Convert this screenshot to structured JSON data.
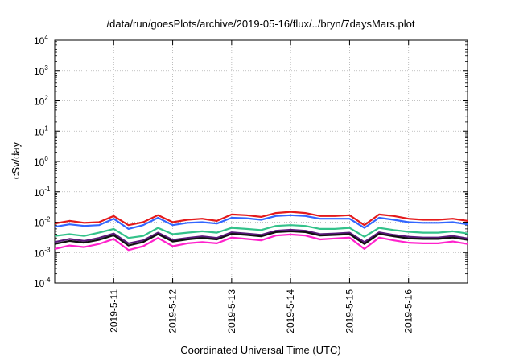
{
  "chart_data": {
    "type": "line",
    "title": "/data/run/goesPlots/archive/2019-05-16/flux/../bryn/7daysMars.plot",
    "xlabel": "Coordinated Universal Time (UTC)",
    "ylabel": "cSv/day",
    "yscale": "log",
    "ylim": [
      0.0001,
      10000
    ],
    "xlim": [
      "2019-05-10T00:00",
      "2019-05-17T00:00"
    ],
    "grid": true,
    "x_ticks": [
      "2019-5-11",
      "2019-5-12",
      "2019-5-13",
      "2019-5-14",
      "2019-5-15",
      "2019-5-16"
    ],
    "y_ticks": [
      {
        "base": "10",
        "exp": "-4"
      },
      {
        "base": "10",
        "exp": "-3"
      },
      {
        "base": "10",
        "exp": "-2"
      },
      {
        "base": "10",
        "exp": "-1"
      },
      {
        "base": "10",
        "exp": "0"
      },
      {
        "base": "10",
        "exp": "1"
      },
      {
        "base": "10",
        "exp": "2"
      },
      {
        "base": "10",
        "exp": "3"
      },
      {
        "base": "10",
        "exp": "4"
      }
    ],
    "x": [
      "2019-05-10T00:00",
      "2019-05-10T06:00",
      "2019-05-10T12:00",
      "2019-05-10T18:00",
      "2019-05-11T00:00",
      "2019-05-11T06:00",
      "2019-05-11T12:00",
      "2019-05-11T18:00",
      "2019-05-12T00:00",
      "2019-05-12T06:00",
      "2019-05-12T12:00",
      "2019-05-12T18:00",
      "2019-05-13T00:00",
      "2019-05-13T06:00",
      "2019-05-13T12:00",
      "2019-05-13T18:00",
      "2019-05-14T00:00",
      "2019-05-14T06:00",
      "2019-05-14T12:00",
      "2019-05-14T18:00",
      "2019-05-15T00:00",
      "2019-05-15T06:00",
      "2019-05-15T12:00",
      "2019-05-15T18:00",
      "2019-05-16T00:00",
      "2019-05-16T06:00",
      "2019-05-16T12:00",
      "2019-05-16T18:00",
      "2019-05-17T00:00"
    ],
    "series": [
      {
        "color": "#e41a1c",
        "values": [
          0.009,
          0.011,
          0.0095,
          0.01,
          0.016,
          0.008,
          0.01,
          0.017,
          0.01,
          0.012,
          0.013,
          0.011,
          0.018,
          0.017,
          0.015,
          0.02,
          0.022,
          0.02,
          0.016,
          0.016,
          0.017,
          0.008,
          0.018,
          0.016,
          0.013,
          0.012,
          0.012,
          0.013,
          0.011
        ]
      },
      {
        "color": "#3366ff",
        "values": [
          0.007,
          0.0085,
          0.0075,
          0.008,
          0.013,
          0.006,
          0.008,
          0.014,
          0.008,
          0.0095,
          0.01,
          0.009,
          0.014,
          0.0135,
          0.012,
          0.016,
          0.017,
          0.016,
          0.013,
          0.013,
          0.013,
          0.0065,
          0.014,
          0.012,
          0.01,
          0.0095,
          0.0095,
          0.01,
          0.0085
        ]
      },
      {
        "color": "#33c28a",
        "values": [
          0.0035,
          0.004,
          0.0035,
          0.0045,
          0.006,
          0.003,
          0.0035,
          0.0065,
          0.004,
          0.0045,
          0.005,
          0.0045,
          0.0065,
          0.006,
          0.0055,
          0.0075,
          0.008,
          0.0075,
          0.006,
          0.006,
          0.0065,
          0.0033,
          0.0065,
          0.0055,
          0.0048,
          0.0045,
          0.0045,
          0.005,
          0.0042
        ]
      },
      {
        "color": "#5a1a7a",
        "values": [
          0.0022,
          0.0028,
          0.0024,
          0.003,
          0.0042,
          0.002,
          0.0025,
          0.0045,
          0.0026,
          0.003,
          0.0034,
          0.003,
          0.0046,
          0.0042,
          0.0038,
          0.0052,
          0.0056,
          0.0052,
          0.004,
          0.0042,
          0.0045,
          0.0022,
          0.0046,
          0.0038,
          0.0033,
          0.0031,
          0.0031,
          0.0035,
          0.0029
        ]
      },
      {
        "color": "#111111",
        "values": [
          0.0019,
          0.0024,
          0.0021,
          0.0026,
          0.0037,
          0.0017,
          0.0022,
          0.004,
          0.0023,
          0.0027,
          0.003,
          0.0027,
          0.0041,
          0.0038,
          0.0034,
          0.0047,
          0.005,
          0.0047,
          0.0036,
          0.0038,
          0.004,
          0.0019,
          0.0041,
          0.0034,
          0.0029,
          0.0028,
          0.0028,
          0.0031,
          0.0026
        ]
      },
      {
        "color": "#ff22cc",
        "values": [
          0.0013,
          0.0017,
          0.0015,
          0.0019,
          0.0028,
          0.0012,
          0.0016,
          0.003,
          0.0016,
          0.002,
          0.0022,
          0.002,
          0.0031,
          0.0028,
          0.0025,
          0.0036,
          0.0039,
          0.0036,
          0.0027,
          0.0029,
          0.0031,
          0.0013,
          0.0031,
          0.0025,
          0.0021,
          0.002,
          0.002,
          0.0023,
          0.0019
        ]
      }
    ]
  }
}
